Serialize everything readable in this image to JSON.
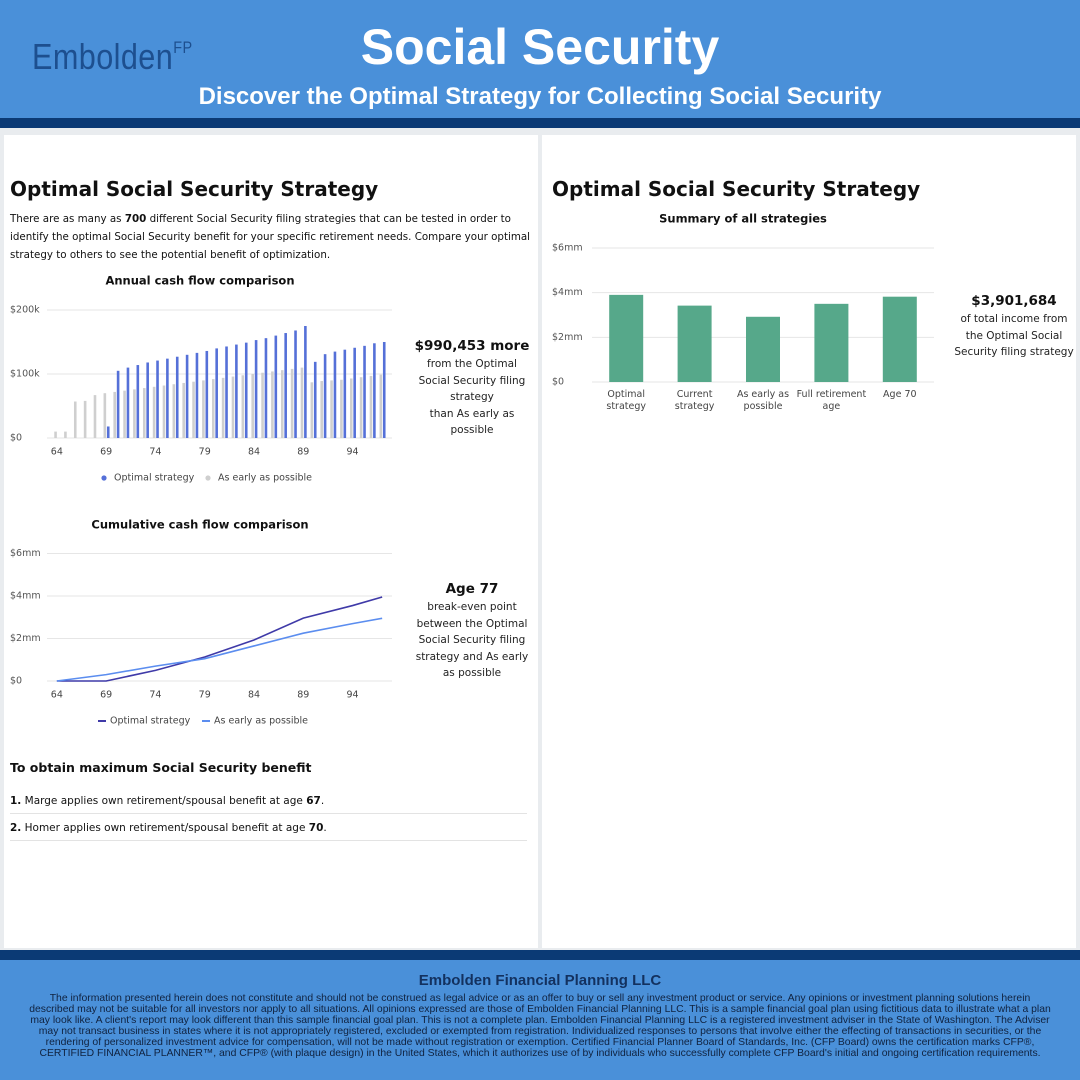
{
  "header": {
    "logo": "Embolden",
    "logo_sup": "FP",
    "title": "Social Security",
    "subtitle": "Discover the Optimal Strategy for Collecting Social Security"
  },
  "left": {
    "heading": "Optimal Social Security Strategy",
    "intro": [
      "There are as many as ",
      "700",
      " different Social Security filing strategies that can be tested in order to identify the optimal Social Security benefit for your specific retirement needs. Compare your optimal strategy to others to see the potential benefit of optimization."
    ],
    "annual_note": {
      "headline": "$990,453 more",
      "line1": "from the Optimal Social Security filing strategy",
      "line2": "than As early as possible"
    },
    "cumulative_note": {
      "headline": "Age 77",
      "text": "break-even point between the Optimal Social Security filing strategy and As early as possible"
    },
    "section": "To obtain maximum Social Security benefit",
    "items": [
      [
        "1.",
        " Marge applies own retirement/spousal benefit at age ",
        "67",
        "."
      ],
      [
        "2.",
        " Homer applies own retirement/spousal benefit at age ",
        "70",
        "."
      ]
    ]
  },
  "right": {
    "heading": "Optimal Social Security Strategy",
    "note": {
      "headline": "$3,901,684",
      "text": "of total income from the Optimal Social Security filing strategy"
    }
  },
  "chart_data": [
    {
      "type": "bar",
      "title": "Annual cash flow comparison",
      "x": [
        64,
        65,
        66,
        67,
        68,
        69,
        70,
        71,
        72,
        73,
        74,
        75,
        76,
        77,
        78,
        79,
        80,
        81,
        82,
        83,
        84,
        85,
        86,
        87,
        88,
        89,
        90,
        91,
        92,
        93,
        94,
        95,
        96,
        97
      ],
      "series": [
        {
          "name": "Optimal strategy",
          "color": "#5570d8",
          "values": [
            null,
            null,
            null,
            null,
            null,
            18000,
            105000,
            110000,
            114000,
            118000,
            121000,
            124000,
            127000,
            130000,
            133000,
            136000,
            140000,
            143000,
            146000,
            149000,
            153000,
            156000,
            160000,
            164000,
            168000,
            175000,
            119000,
            131000,
            135000,
            138000,
            141000,
            144000,
            148000,
            150000
          ]
        },
        {
          "name": "As early as possible",
          "color": "#cfcfcf",
          "values": [
            10000,
            10000,
            57000,
            58000,
            67000,
            70000,
            72000,
            74000,
            76000,
            78000,
            80000,
            82000,
            84000,
            86000,
            88000,
            90000,
            92000,
            94000,
            96000,
            98000,
            100000,
            102000,
            104000,
            106000,
            108000,
            110000,
            87000,
            89000,
            90000,
            91000,
            93000,
            95000,
            97000,
            99000
          ]
        }
      ],
      "xlim": [
        63,
        98
      ],
      "xticks": [
        64,
        69,
        74,
        79,
        84,
        89,
        94
      ],
      "ylim": [
        0,
        200000
      ],
      "yticks": [
        {
          "value": 0,
          "label": "$0"
        },
        {
          "value": 100000,
          "label": "$100k"
        },
        {
          "value": 200000,
          "label": "$200k"
        }
      ],
      "grid": true,
      "legend": "bottom"
    },
    {
      "type": "line",
      "title": "Cumulative cash flow comparison",
      "x": [
        64,
        69,
        74,
        79,
        84,
        89,
        94,
        97
      ],
      "series": [
        {
          "name": "Optimal strategy",
          "color": "#3f3aa8",
          "values": [
            0,
            0,
            500000,
            1130000,
            1930000,
            2960000,
            3550000,
            3950000
          ]
        },
        {
          "name": "As early as possible",
          "color": "#5b8def",
          "values": [
            0,
            300000,
            700000,
            1050000,
            1650000,
            2250000,
            2700000,
            2950000
          ]
        }
      ],
      "xlim": [
        63,
        98
      ],
      "xticks": [
        64,
        69,
        74,
        79,
        84,
        89,
        94
      ],
      "ylim": [
        0,
        6000000
      ],
      "yticks": [
        {
          "value": 0,
          "label": "$0"
        },
        {
          "value": 2000000,
          "label": "$2mm"
        },
        {
          "value": 4000000,
          "label": "$4mm"
        },
        {
          "value": 6000000,
          "label": "$6mm"
        }
      ],
      "grid": true,
      "legend": "bottom"
    },
    {
      "type": "bar",
      "title": "Summary of all strategies",
      "categories": [
        "Optimal strategy",
        "Current strategy",
        "As early as possible",
        "Full retirement age",
        "Age 70"
      ],
      "values": [
        3901684,
        3420000,
        2920000,
        3500000,
        3820000
      ],
      "color": "#56a88a",
      "ylim": [
        0,
        6000000
      ],
      "yticks": [
        {
          "value": 0,
          "label": "$0"
        },
        {
          "value": 2000000,
          "label": "$2mm"
        },
        {
          "value": 4000000,
          "label": "$4mm"
        },
        {
          "value": 6000000,
          "label": "$6mm"
        }
      ],
      "grid": true
    }
  ],
  "footer": {
    "title": "Embolden Financial Planning LLC",
    "text": "The information presented herein does not constitute and should not be construed as legal advice or as an offer to buy or sell any investment product or service. Any opinions or investment planning solutions herein described may not be suitable for all investors nor apply to all situations. All opinions expressed are those of Embolden Financial Planning LLC. This is a sample financial goal plan using fictitious data to illustrate what a plan may look like. A client's report may look different than this sample financial goal plan. This is not a complete plan. Embolden Financial Planning LLC is a registered investment adviser in the State of Washington. The Adviser may not transact business in states where it is not appropriately registered, excluded or exempted from registration. Individualized responses to persons that involve either the effecting of transactions in securities, or the rendering of personalized investment advice for compensation, will not be made without registration or exemption. Certified Financial Planner Board of Standards, Inc. (CFP Board) owns the certification marks CFP®, CERTIFIED FINANCIAL PLANNER™, and CFP® (with plaque design) in the United States, which it authorizes use of by individuals who successfully complete CFP Board's initial and ongoing certification requirements."
  }
}
